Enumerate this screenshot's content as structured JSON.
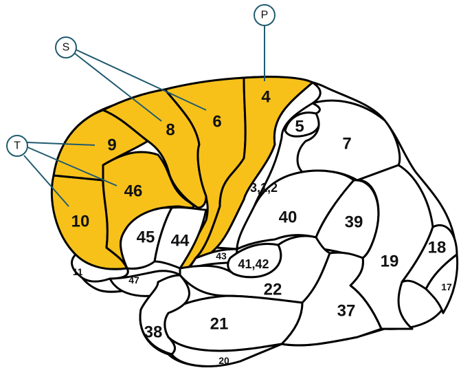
{
  "colors": {
    "highlight": "#f7c11a",
    "outline": "#000000",
    "leader": "#1f5a6e",
    "plain": "#ffffff"
  },
  "markers": {
    "p": "P",
    "s": "S",
    "t": "T"
  },
  "areas": {
    "a4": "4",
    "a6": "6",
    "a8": "8",
    "a9": "9",
    "a46": "46",
    "a10": "10",
    "a5": "5",
    "a7": "7",
    "a312": "3,1,2",
    "a40": "40",
    "a39": "39",
    "a45": "45",
    "a44": "44",
    "a43": "43",
    "a4142": "41,42",
    "a22": "22",
    "a19": "19",
    "a18": "18",
    "a17": "17",
    "a11": "11",
    "a47": "47",
    "a37": "37",
    "a38": "38",
    "a21": "21",
    "a20": "20"
  }
}
